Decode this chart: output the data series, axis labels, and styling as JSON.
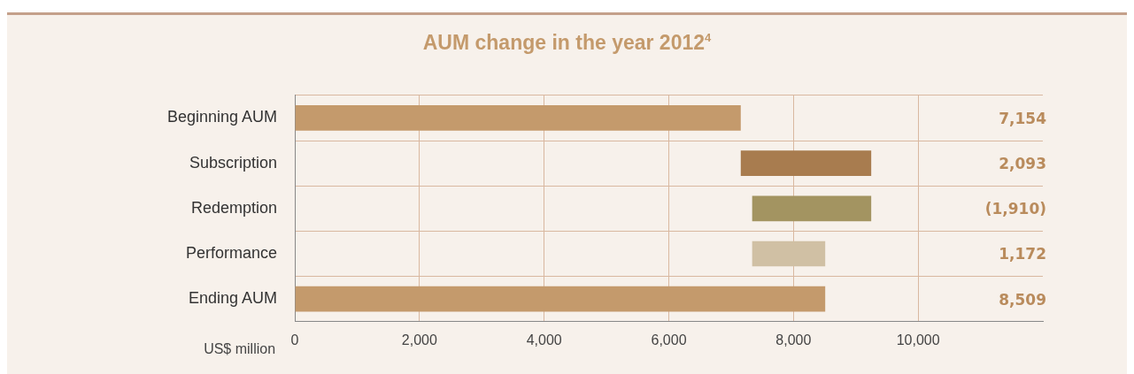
{
  "chart_data": {
    "type": "bar",
    "orientation": "horizontal",
    "title": "AUM change in the year 2012$^{4}$",
    "xlabel": "US$ million",
    "categories": [
      "Beginning AUM",
      "Subscription",
      "Redemption",
      "Performance",
      "Ending AUM"
    ],
    "values": [
      7154,
      2093,
      -1910,
      1172,
      8509
    ],
    "base": [
      0,
      7154,
      9247,
      7337,
      0
    ],
    "colors": [
      "#c49a6c",
      "#a87c4f",
      "#a39461",
      "#d0c0a4",
      "#c49a6c"
    ],
    "value_labels": [
      "7,154",
      "2,093",
      "(1,910)",
      "1,172",
      "8,509"
    ],
    "xlim": [
      0,
      12000
    ],
    "xticks": [
      {
        "value": 0,
        "label": "0"
      },
      {
        "value": 2000,
        "label": "2,000"
      },
      {
        "value": 4000,
        "label": "4,000"
      },
      {
        "value": 6000,
        "label": "6,000"
      },
      {
        "value": 8000,
        "label": "8,000"
      },
      {
        "value": 10000,
        "label": "10,000"
      }
    ],
    "grid": true,
    "legend": false
  }
}
